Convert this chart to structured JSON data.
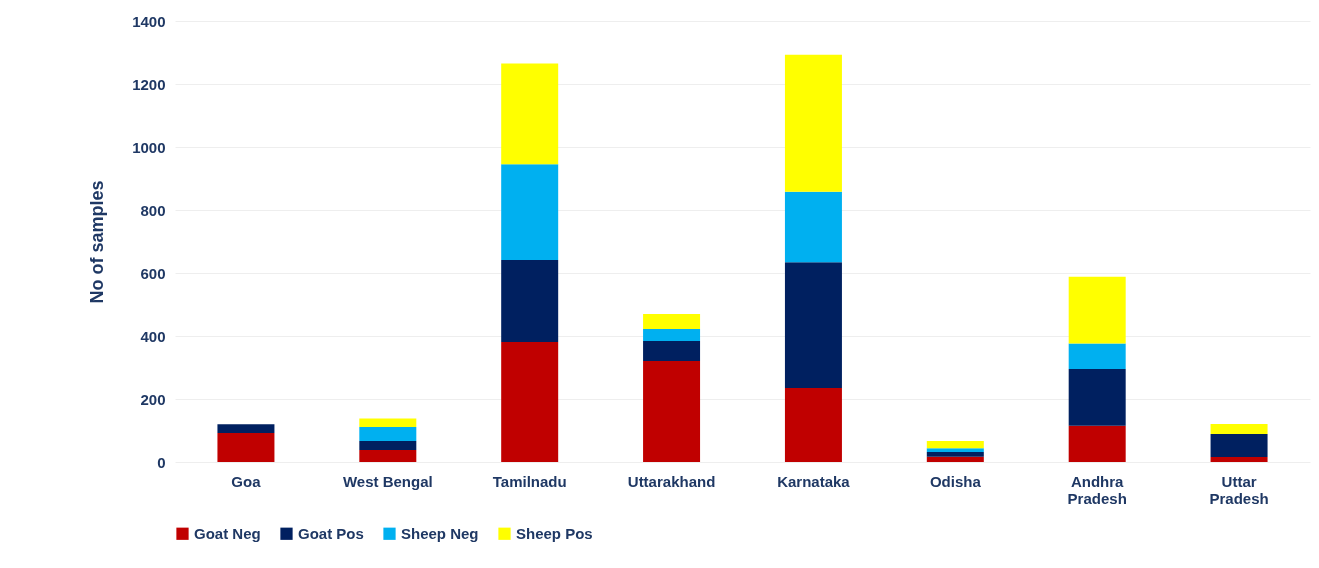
{
  "chart_data": {
    "type": "bar",
    "stacked": true,
    "ylabel": "No of samples",
    "categories": [
      "Goa",
      "West Bengal",
      "Tamilnadu",
      "Uttarakhand",
      "Karnataka",
      "Odisha",
      "Andhra Pradesh",
      "Uttar Pradesh"
    ],
    "series": [
      {
        "name": "Goat Neg",
        "color": "#c00000",
        "values": [
          92,
          38,
          381,
          321,
          235,
          17,
          115,
          16
        ]
      },
      {
        "name": "Goat Pos",
        "color": "#002060",
        "values": [
          28,
          29,
          260,
          63,
          399,
          15,
          180,
          73
        ]
      },
      {
        "name": "Sheep Neg",
        "color": "#00b0f0",
        "values": [
          0,
          44,
          304,
          38,
          224,
          12,
          81,
          0
        ]
      },
      {
        "name": "Sheep Pos",
        "color": "#ffff00",
        "values": [
          0,
          27,
          320,
          48,
          435,
          23,
          212,
          32
        ]
      }
    ],
    "ylim": [
      0,
      1400
    ],
    "yticks": [
      0,
      200,
      400,
      600,
      800,
      1000,
      1200,
      1400
    ],
    "grid": "y",
    "legend": "bottom"
  }
}
